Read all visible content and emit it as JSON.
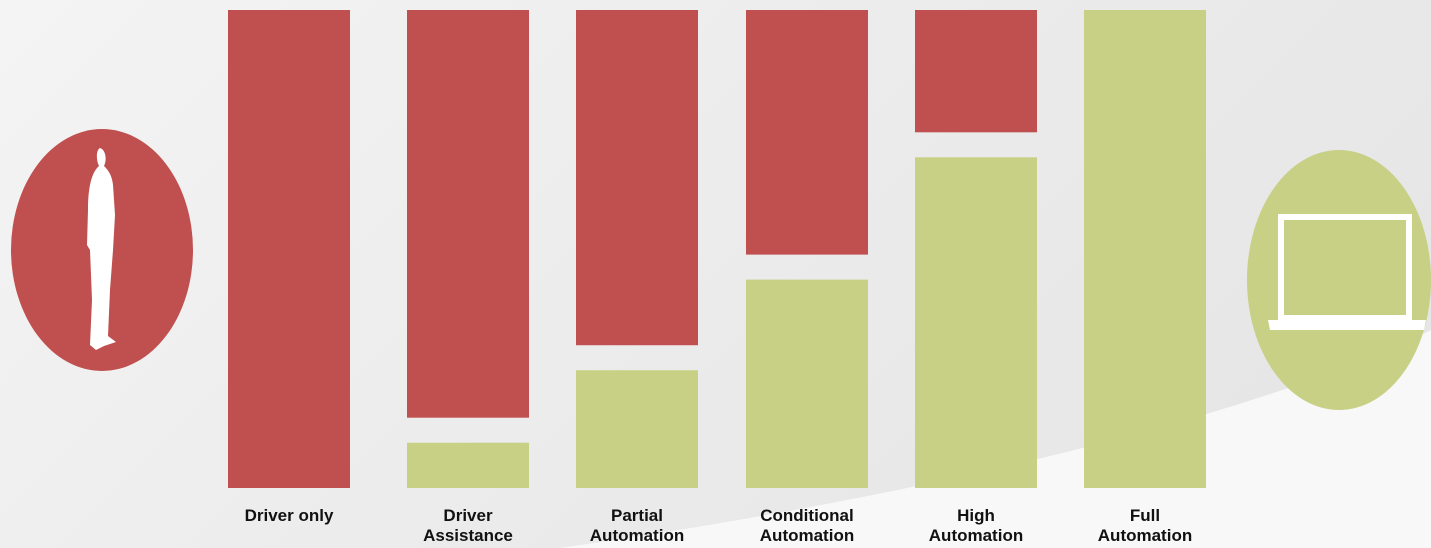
{
  "chart_data": {
    "type": "bar",
    "stacked": true,
    "categories": [
      "Driver only",
      "Driver\nAssistance",
      "Partial\nAutomation",
      "Conditional\nAutomation",
      "High\nAutomation",
      "Full\nAutomation"
    ],
    "series": [
      {
        "color": "#c0504f",
        "values": [
          100,
          90,
          74,
          54,
          27,
          0
        ]
      },
      {
        "color": "#c8d086",
        "values": [
          0,
          10,
          26,
          46,
          73,
          100
        ]
      }
    ],
    "ylim": [
      0,
      100
    ]
  }
}
